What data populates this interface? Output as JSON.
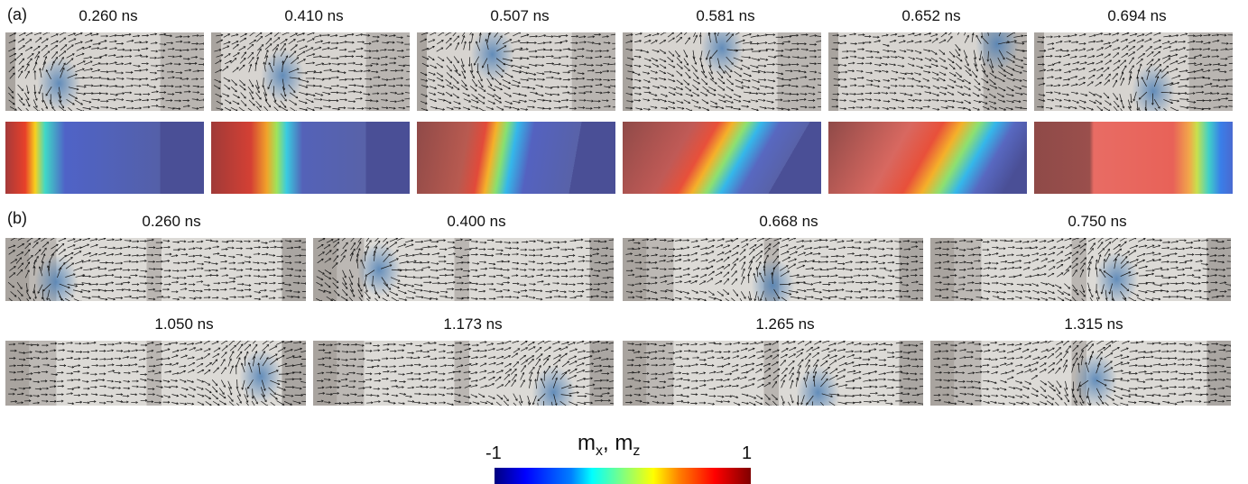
{
  "labels": {
    "a": "(a)",
    "b": "(b)"
  },
  "rowA_times": [
    "0.260 ns",
    "0.410 ns",
    "0.507 ns",
    "0.581 ns",
    "0.652 ns",
    "0.694 ns"
  ],
  "rowB1_times": [
    "0.260 ns",
    "0.400 ns",
    "0.668 ns",
    "0.750 ns"
  ],
  "rowB2_times": [
    "1.050 ns",
    "1.173 ns",
    "1.265 ns",
    "1.315 ns"
  ],
  "colorbar": {
    "title_main": "m",
    "sub_x": "x",
    "sep": ", m",
    "sub_z": "z",
    "min": "-1",
    "max": "1",
    "colormap": "jet"
  },
  "colors": {
    "arrow": "#111111",
    "stripe_dark": "#a9a49f",
    "stripe_light": "#d8d6d2",
    "deep_blue": "#4a4f96"
  }
}
